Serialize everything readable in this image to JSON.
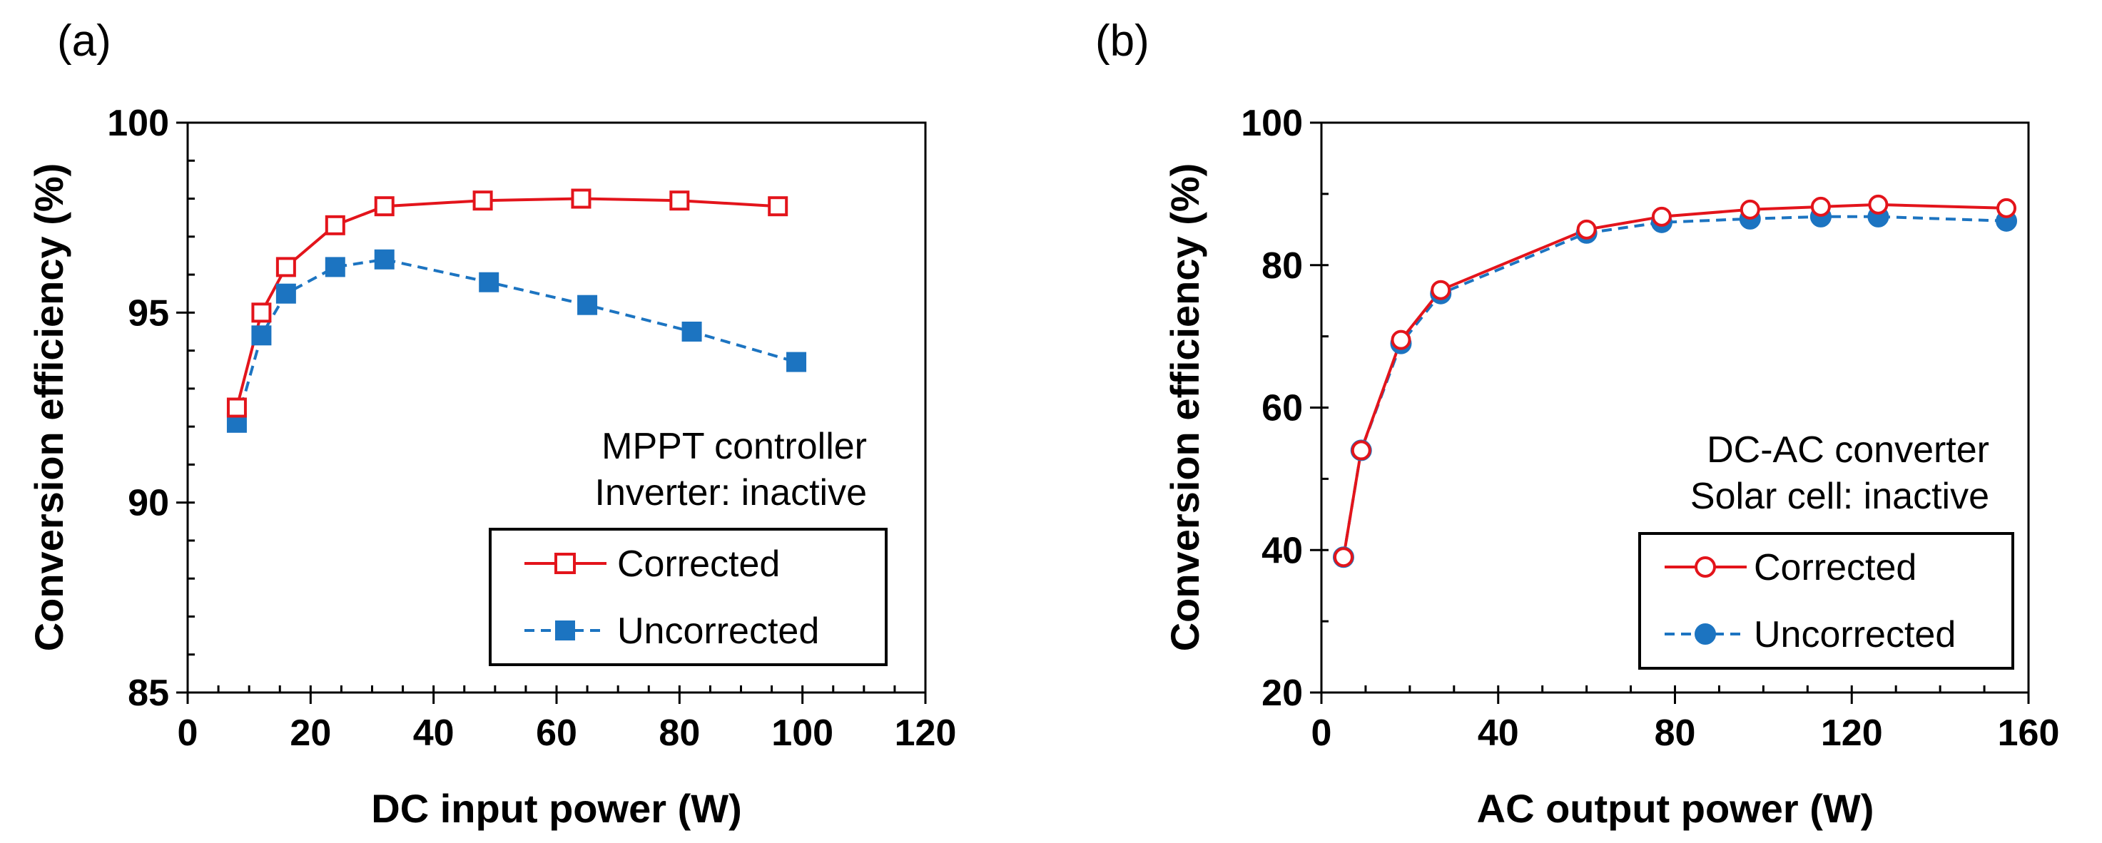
{
  "panels": [
    {
      "panel_label": "(a)",
      "annotation": [
        "MPPT controller",
        "Inverter: inactive"
      ],
      "legend": [
        "Corrected",
        "Uncorrected"
      ]
    },
    {
      "panel_label": "(b)",
      "annotation": [
        "DC-AC converter",
        "Solar cell: inactive"
      ],
      "legend": [
        "Corrected",
        "Uncorrected"
      ]
    }
  ],
  "colors": {
    "corrected": "#e3141b",
    "uncorrected": "#1c74c1",
    "axis": "#000000"
  },
  "chart_data": [
    {
      "type": "line",
      "xlabel": "DC input power (W)",
      "ylabel": "Conversion efficiency (%)",
      "xlim": [
        0,
        120
      ],
      "ylim": [
        85,
        100
      ],
      "x_ticks": [
        0,
        20,
        40,
        60,
        80,
        100,
        120
      ],
      "y_ticks": [
        85,
        90,
        95,
        100
      ],
      "x_minor_step": 5,
      "y_minor_step": 1,
      "grid": false,
      "legend_position": "bottom-right",
      "series": [
        {
          "name": "Corrected",
          "marker": "open-square",
          "line": "solid",
          "x": [
            8,
            12,
            16,
            24,
            32,
            48,
            64,
            80,
            96
          ],
          "y": [
            92.5,
            95.0,
            96.2,
            97.3,
            97.8,
            97.95,
            98.0,
            97.95,
            97.8
          ]
        },
        {
          "name": "Uncorrected",
          "marker": "filled-square",
          "line": "dashed",
          "x": [
            8,
            12,
            16,
            24,
            32,
            49,
            65,
            82,
            99
          ],
          "y": [
            92.1,
            94.4,
            95.5,
            96.2,
            96.4,
            95.8,
            95.2,
            94.5,
            93.7
          ]
        }
      ]
    },
    {
      "type": "line",
      "xlabel": "AC output power (W)",
      "ylabel": "Conversion efficiency (%)",
      "xlim": [
        0,
        160
      ],
      "ylim": [
        20,
        100
      ],
      "x_ticks": [
        0,
        40,
        80,
        120,
        160
      ],
      "y_ticks": [
        20,
        40,
        60,
        80,
        100
      ],
      "x_minor_step": 10,
      "y_minor_step": 10,
      "grid": false,
      "legend_position": "bottom-right",
      "series": [
        {
          "name": "Corrected",
          "marker": "open-circle",
          "line": "solid",
          "x": [
            5,
            9,
            18,
            27,
            60,
            77,
            97,
            113,
            126,
            155
          ],
          "y": [
            39,
            54,
            69.5,
            76.5,
            85,
            86.8,
            87.8,
            88.2,
            88.5,
            88.0
          ]
        },
        {
          "name": "Uncorrected",
          "marker": "filled-circle",
          "line": "dashed",
          "x": [
            5,
            9,
            18,
            27,
            60,
            77,
            97,
            113,
            126,
            155
          ],
          "y": [
            39,
            54,
            69,
            76,
            84.5,
            86,
            86.5,
            86.8,
            86.8,
            86.2
          ]
        }
      ]
    }
  ]
}
